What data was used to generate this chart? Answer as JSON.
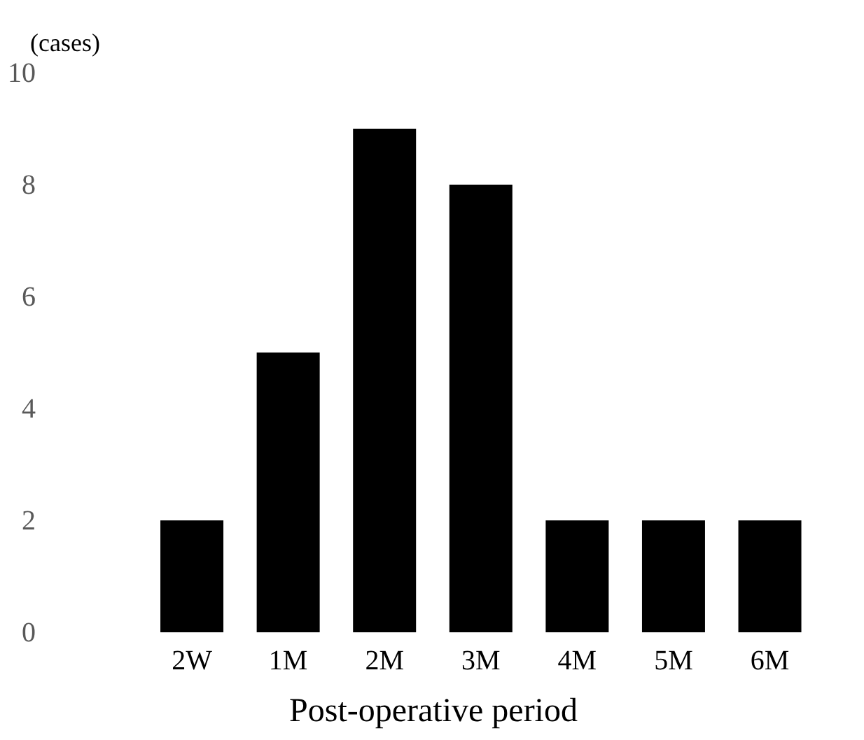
{
  "chart_data": {
    "type": "bar",
    "xlabel": "Post-operative period",
    "ylabel": "(cases)",
    "categories": [
      null,
      "2W",
      "1M",
      "2M",
      "3M",
      "4M",
      "5M",
      "6M"
    ],
    "values": [
      null,
      2,
      5,
      9,
      8,
      2,
      2,
      2
    ],
    "color": "#000000",
    "ylim": [
      0,
      10
    ],
    "yticks": [
      0,
      2,
      4,
      6,
      8,
      10
    ],
    "grid": false
  }
}
